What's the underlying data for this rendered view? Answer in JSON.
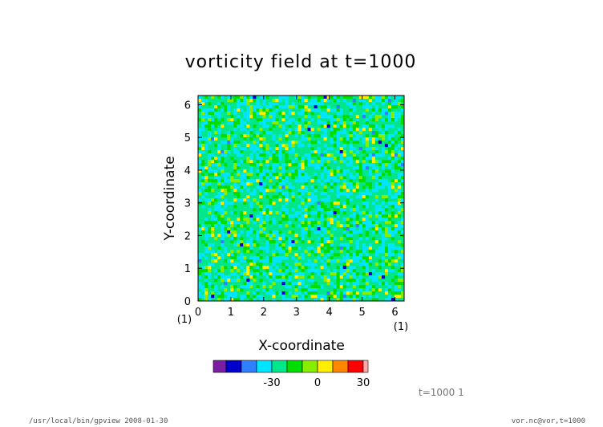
{
  "colors": {
    "background": "#ffffff",
    "axis": "#000000",
    "footer_text": "#555555",
    "colorbar": [
      "#7b1fa2",
      "#0000cc",
      "#2f7fff",
      "#00e5ff",
      "#00e68a",
      "#00dd00",
      "#88ee00",
      "#ffee00",
      "#ff8800",
      "#ff0000",
      "#ffaaaa"
    ]
  },
  "chart_data": {
    "type": "heatmap",
    "title": "vorticity field at t=1000",
    "xlabel": "X-coordinate",
    "ylabel": "Y-coordinate",
    "xlim": [
      0,
      6.28
    ],
    "ylim": [
      0,
      6.28
    ],
    "xticks": [
      "0",
      "1",
      "2",
      "3",
      "4",
      "5",
      "6"
    ],
    "yticks": [
      "0",
      "1",
      "2",
      "3",
      "4",
      "5",
      "6"
    ],
    "x_corner_label": "(1)",
    "y_corner_label": "(1)",
    "field": "noisy vorticity field dominated by values near 0 (green/cyan) with scattered yellow and blue extremes",
    "colorbar": {
      "ticks": [
        "-30",
        "0",
        "30"
      ],
      "tick_values": [
        -30,
        0,
        30
      ],
      "levels": [
        -60,
        -50,
        -40,
        -30,
        -20,
        -10,
        0,
        10,
        20,
        30,
        40,
        50
      ]
    },
    "annotation": "t=1000  1"
  },
  "footer": {
    "left": "/usr/local/bin/gpview  2008-01-30",
    "right": "vor.nc@vor,t=1000"
  }
}
